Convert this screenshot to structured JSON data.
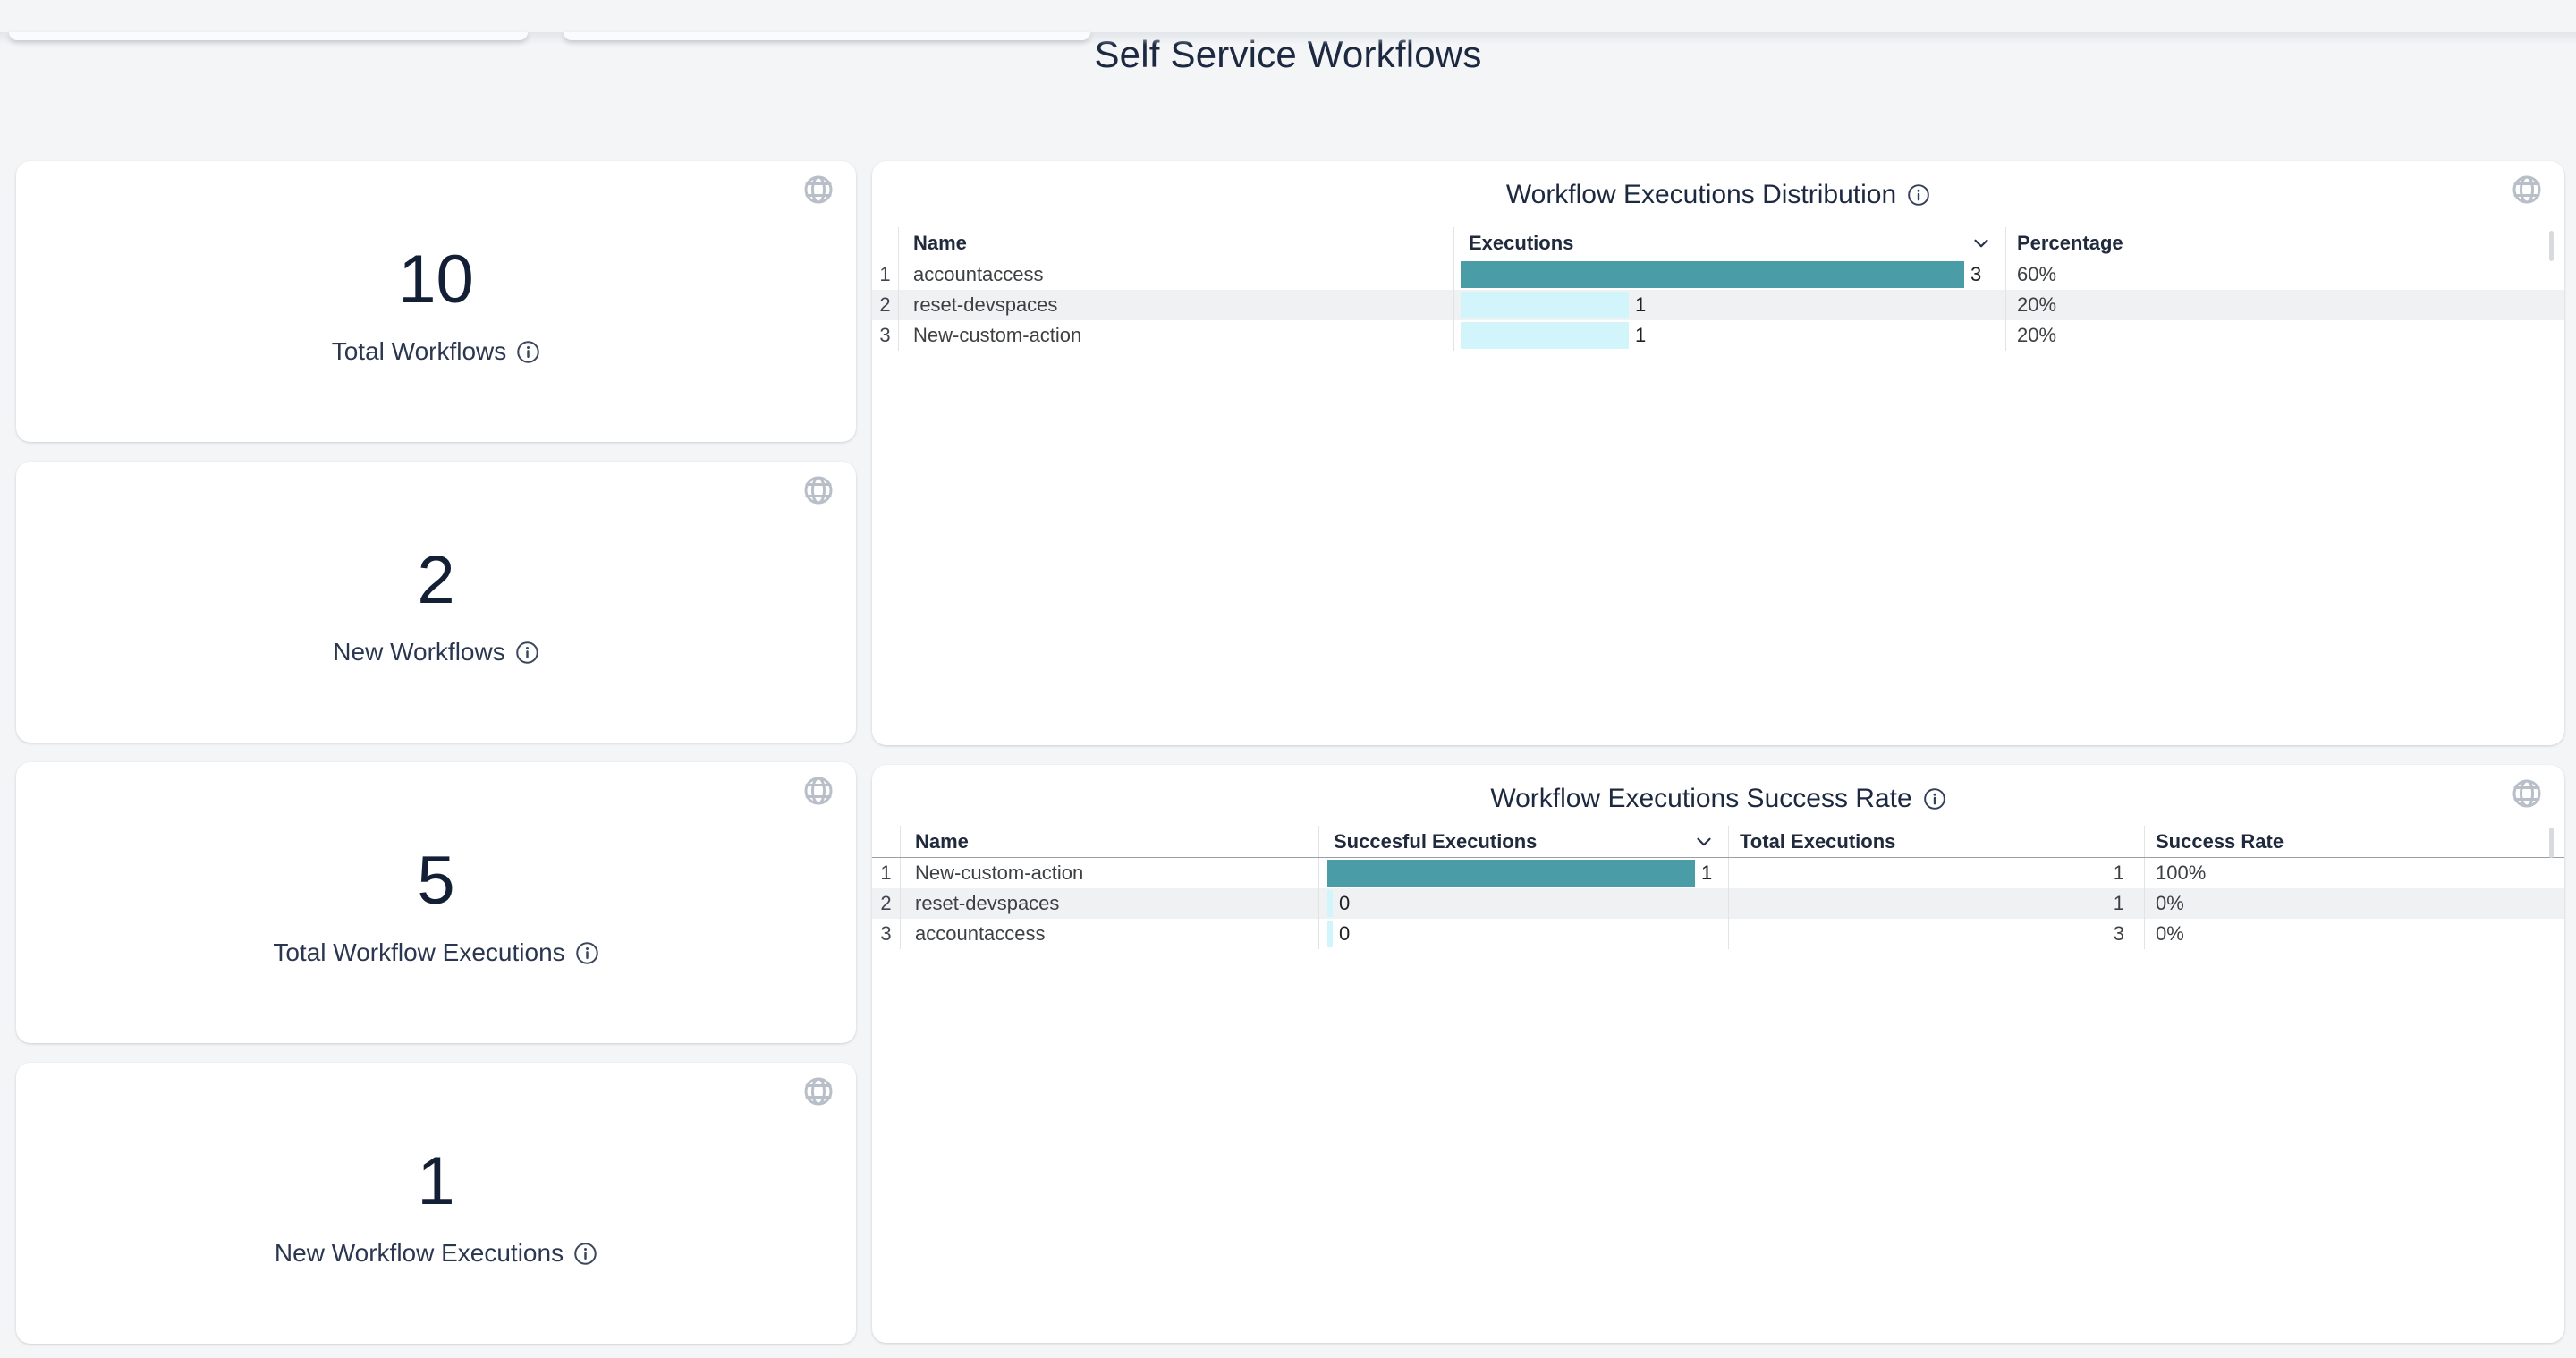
{
  "page": {
    "title": "Self Service Workflows"
  },
  "colors": {
    "page_bg": "#f3f5f7",
    "bar_primary": "#4a9da6",
    "bar_secondary": "#d2f5fb",
    "text_dark": "#1c2940",
    "zebra": "#f0f1f2"
  },
  "stat_cards": [
    {
      "value": "10",
      "label": "Total Workflows",
      "label_icon": "info-icon",
      "corner_icon": "globe-icon"
    },
    {
      "value": "2",
      "label": "New Workflows",
      "label_icon": "info-icon",
      "corner_icon": "globe-icon"
    },
    {
      "value": "5",
      "label": "Total Workflow Executions",
      "label_icon": "info-icon",
      "corner_icon": "globe-icon"
    },
    {
      "value": "1",
      "label": "New Workflow Executions",
      "label_icon": "info-icon",
      "corner_icon": "globe-icon"
    }
  ],
  "tables": {
    "distribution": {
      "title": "Workflow Executions Distribution",
      "title_icon": "info-icon",
      "corner_icon": "globe-icon",
      "columns": {
        "name": "Name",
        "executions": "Executions",
        "percentage": "Percentage"
      },
      "sorted_by": "executions",
      "sort_icon": "chevron-down-icon",
      "max_executions": 3,
      "rows": [
        {
          "index": "1",
          "name": "accountaccess",
          "executions": 3,
          "percentage": "60%"
        },
        {
          "index": "2",
          "name": "reset-devspaces",
          "executions": 1,
          "percentage": "20%"
        },
        {
          "index": "3",
          "name": "New-custom-action",
          "executions": 1,
          "percentage": "20%"
        }
      ]
    },
    "success_rate": {
      "title": "Workflow Executions Success Rate",
      "title_icon": "info-icon",
      "corner_icon": "globe-icon",
      "columns": {
        "name": "Name",
        "successful": "Succesful Executions",
        "total": "Total Executions",
        "rate": "Success Rate"
      },
      "sorted_by": "successful",
      "sort_icon": "chevron-down-icon",
      "max_successful": 1,
      "rows": [
        {
          "index": "1",
          "name": "New-custom-action",
          "successful": 1,
          "total": 1,
          "rate": "100%"
        },
        {
          "index": "2",
          "name": "reset-devspaces",
          "successful": 0,
          "total": 1,
          "rate": "0%"
        },
        {
          "index": "3",
          "name": "accountaccess",
          "successful": 0,
          "total": 3,
          "rate": "0%"
        }
      ]
    }
  },
  "chart_data": [
    {
      "type": "bar",
      "orientation": "horizontal",
      "title": "Workflow Executions Distribution",
      "categories": [
        "accountaccess",
        "reset-devspaces",
        "New-custom-action"
      ],
      "values": [
        3,
        1,
        1
      ],
      "percentages": [
        "60%",
        "20%",
        "20%"
      ]
    },
    {
      "type": "bar",
      "orientation": "horizontal",
      "title": "Workflow Executions Success Rate",
      "categories": [
        "New-custom-action",
        "reset-devspaces",
        "accountaccess"
      ],
      "values": [
        1,
        0,
        0
      ],
      "totals": [
        1,
        1,
        3
      ],
      "rates": [
        "100%",
        "0%",
        "0%"
      ]
    }
  ]
}
